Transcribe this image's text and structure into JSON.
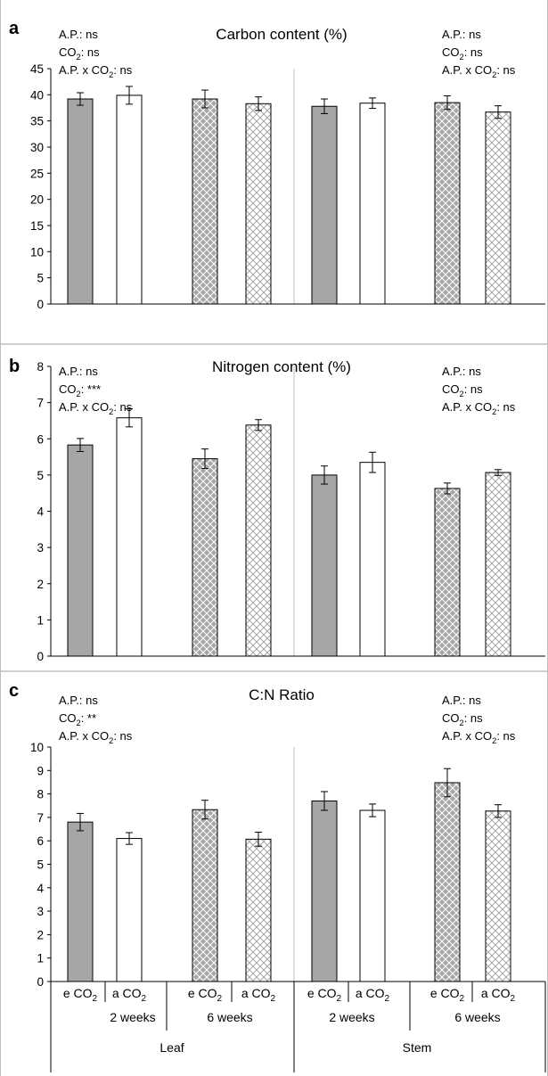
{
  "figure": {
    "colors": {
      "elevated_fill": "#a6a6a6",
      "ambient_fill": "#ffffff",
      "bar_stroke": "#000000",
      "frame_stroke": "#bfbfbf",
      "pattern_stroke": "#ffffff"
    }
  },
  "x_axis": {
    "co2_labels": [
      [
        "e CO",
        "2"
      ],
      [
        "a CO",
        "2"
      ],
      [
        "e CO",
        "2"
      ],
      [
        "a CO",
        "2"
      ],
      [
        "e CO",
        "2"
      ],
      [
        "a CO",
        "2"
      ],
      [
        "e CO",
        "2"
      ],
      [
        "a CO",
        "2"
      ]
    ],
    "time_labels": [
      "2 weeks",
      "6 weeks",
      "2 weeks",
      "6 weeks"
    ],
    "organ_labels": [
      "Leaf",
      "Stem"
    ]
  },
  "chart_data": [
    {
      "type": "bar",
      "panel": "a",
      "title": "Carbon content (%)",
      "categories": [
        "e CO2 2 weeks Leaf",
        "a CO2 2 weeks Leaf",
        "e CO2 6 weeks Leaf",
        "a CO2 6 weeks Leaf",
        "e CO2 2 weeks Stem",
        "a CO2 2 weeks Stem",
        "e CO2 6 weeks Stem",
        "a CO2 6 weeks Stem"
      ],
      "values": [
        39.2,
        39.9,
        39.2,
        38.3,
        37.8,
        38.4,
        38.5,
        36.7
      ],
      "errors": [
        1.2,
        1.7,
        1.7,
        1.3,
        1.4,
        1.0,
        1.3,
        1.2
      ],
      "ylim": [
        0,
        45
      ],
      "yticks": [
        0,
        5,
        10,
        15,
        20,
        25,
        30,
        35,
        40,
        45
      ],
      "stats_left": [
        [
          "A.P.: ns"
        ],
        [
          "CO",
          "2",
          ": ns"
        ],
        [
          "A.P. x CO",
          "2",
          ": ns"
        ]
      ],
      "stats_right": [
        [
          "A.P.: ns"
        ],
        [
          "CO",
          "2",
          ": ns"
        ],
        [
          "A.P. x CO",
          "2",
          ": ns"
        ]
      ]
    },
    {
      "type": "bar",
      "panel": "b",
      "title": "Nitrogen content (%)",
      "categories": [
        "e CO2 2 weeks Leaf",
        "a CO2 2 weeks Leaf",
        "e CO2 6 weeks Leaf",
        "a CO2 6 weeks Leaf",
        "e CO2 2 weeks Stem",
        "a CO2 2 weeks Stem",
        "e CO2 6 weeks Stem",
        "a CO2 6 weeks Stem"
      ],
      "values": [
        5.83,
        6.58,
        5.45,
        6.38,
        5.0,
        5.35,
        4.63,
        5.07
      ],
      "errors": [
        0.18,
        0.25,
        0.27,
        0.15,
        0.25,
        0.28,
        0.15,
        0.08
      ],
      "ylim": [
        0,
        8
      ],
      "yticks": [
        0,
        1,
        2,
        3,
        4,
        5,
        6,
        7,
        8
      ],
      "stats_left": [
        [
          "A.P.: ns"
        ],
        [
          "CO",
          "2",
          ": ***"
        ],
        [
          "A.P. x CO",
          "2",
          ": ns"
        ]
      ],
      "stats_right": [
        [
          "A.P.: ns"
        ],
        [
          "CO",
          "2",
          ": ns"
        ],
        [
          "A.P. x CO",
          "2",
          ": ns"
        ]
      ]
    },
    {
      "type": "bar",
      "panel": "c",
      "title": "C:N Ratio",
      "categories": [
        "e CO2 2 weeks Leaf",
        "a CO2 2 weeks Leaf",
        "e CO2 6 weeks Leaf",
        "a CO2 6 weeks Leaf",
        "e CO2 2 weeks Stem",
        "a CO2 2 weeks Stem",
        "e CO2 6 weeks Stem",
        "a CO2 6 weeks Stem"
      ],
      "values": [
        6.8,
        6.1,
        7.33,
        6.07,
        7.7,
        7.3,
        8.48,
        7.27
      ],
      "errors": [
        0.37,
        0.25,
        0.4,
        0.3,
        0.4,
        0.27,
        0.6,
        0.27
      ],
      "ylim": [
        0,
        10
      ],
      "yticks": [
        0,
        1,
        2,
        3,
        4,
        5,
        6,
        7,
        8,
        9,
        10
      ],
      "stats_left": [
        [
          "A.P.: ns"
        ],
        [
          "CO",
          "2",
          ": **"
        ],
        [
          "A.P. x CO",
          "2",
          ": ns"
        ]
      ],
      "stats_right": [
        [
          "A.P.: ns"
        ],
        [
          "CO",
          "2",
          ": ns"
        ],
        [
          "A.P. x CO",
          "2",
          ": ns"
        ]
      ]
    }
  ]
}
